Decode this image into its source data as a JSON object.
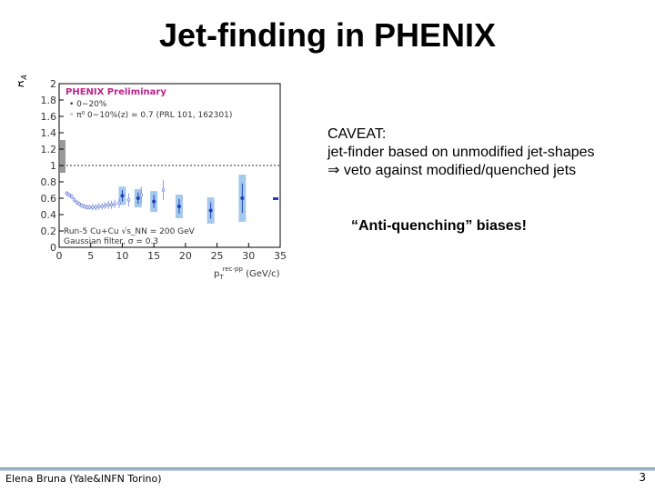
{
  "slide": {
    "title": "Jet-finding in PHENIX",
    "caveat_lines": [
      "CAVEAT:",
      "jet-finder based on unmodified jet-shapes",
      "⇒ veto against modified/quenched jets"
    ],
    "anti_quenching": "“Anti-quenching” biases!",
    "footer_author": "Elena Bruna (Yale&INFN Torino)",
    "page_number": "3"
  },
  "chart_data": {
    "type": "scatter",
    "ylabel": "R_AA",
    "xlabel": "p_T^{rec-pp} (GeV/c)",
    "xlim": [
      0,
      35
    ],
    "ylim": [
      0,
      2
    ],
    "x_ticks": [
      "0",
      "5",
      "10",
      "15",
      "20",
      "25",
      "30",
      "35"
    ],
    "y_ticks": [
      "0",
      "0.2",
      "0.4",
      "0.6",
      "0.8",
      "1",
      "1.2",
      "1.4",
      "1.6",
      "1.8",
      "2"
    ],
    "reference_line_y": 1.0,
    "preliminary_label": "PHENIX Preliminary",
    "annotations": [
      "Run-5 Cu+Cu √s_NN = 200 GeV",
      "Gaussian filter, σ = 0.3"
    ],
    "colors": {
      "primary": "#1f3fbf",
      "secondary": "#6f86d8",
      "box": "#8fbbe6",
      "label": "#c0218a"
    },
    "series": [
      {
        "name": "0−20%",
        "points": [
          {
            "x": 10.0,
            "y": 0.63,
            "err": 0.07
          },
          {
            "x": 12.5,
            "y": 0.6,
            "err": 0.07
          },
          {
            "x": 15.0,
            "y": 0.56,
            "err": 0.08
          },
          {
            "x": 19.0,
            "y": 0.5,
            "err": 0.09
          },
          {
            "x": 24.0,
            "y": 0.45,
            "err": 0.1
          },
          {
            "x": 29.0,
            "y": 0.6,
            "err": 0.18
          }
        ]
      },
      {
        "name": "π⁰ 0−10%(z) = 0.7 (PRL 101, 162301)",
        "points": [
          {
            "x": 1.2,
            "y": 0.66,
            "err": 0.03
          },
          {
            "x": 1.6,
            "y": 0.64,
            "err": 0.03
          },
          {
            "x": 2.0,
            "y": 0.62,
            "err": 0.03
          },
          {
            "x": 2.4,
            "y": 0.58,
            "err": 0.03
          },
          {
            "x": 2.8,
            "y": 0.55,
            "err": 0.03
          },
          {
            "x": 3.2,
            "y": 0.53,
            "err": 0.03
          },
          {
            "x": 3.6,
            "y": 0.51,
            "err": 0.03
          },
          {
            "x": 4.0,
            "y": 0.5,
            "err": 0.03
          },
          {
            "x": 4.4,
            "y": 0.49,
            "err": 0.03
          },
          {
            "x": 4.8,
            "y": 0.49,
            "err": 0.03
          },
          {
            "x": 5.3,
            "y": 0.49,
            "err": 0.04
          },
          {
            "x": 5.8,
            "y": 0.49,
            "err": 0.04
          },
          {
            "x": 6.3,
            "y": 0.5,
            "err": 0.04
          },
          {
            "x": 6.8,
            "y": 0.5,
            "err": 0.04
          },
          {
            "x": 7.3,
            "y": 0.51,
            "err": 0.04
          },
          {
            "x": 7.8,
            "y": 0.52,
            "err": 0.05
          },
          {
            "x": 8.3,
            "y": 0.52,
            "err": 0.05
          },
          {
            "x": 8.8,
            "y": 0.53,
            "err": 0.05
          },
          {
            "x": 9.5,
            "y": 0.54,
            "err": 0.06
          },
          {
            "x": 11.0,
            "y": 0.58,
            "err": 0.08
          },
          {
            "x": 13.0,
            "y": 0.64,
            "err": 0.1
          },
          {
            "x": 16.5,
            "y": 0.7,
            "err": 0.12
          }
        ]
      }
    ]
  }
}
